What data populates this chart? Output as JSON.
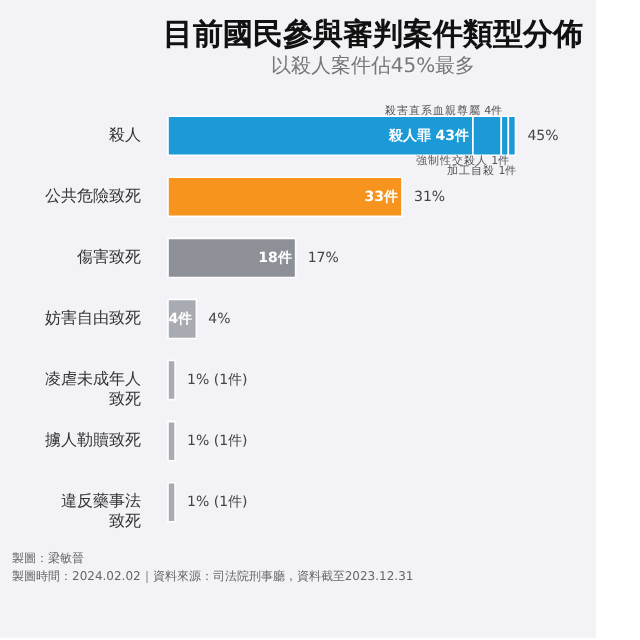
{
  "chart_data": {
    "type": "bar",
    "orientation": "horizontal",
    "stacked": true,
    "title": "目前國民參與審判案件類型分佈",
    "subtitle": "以殺人案件佔45%最多",
    "categories": [
      "殺人",
      "公共危險致死",
      "傷害致死",
      "妨害自由致死",
      "凌虐未成年人致死",
      "擄人勒贖致死",
      "違反藥事法致死"
    ],
    "series": [
      {
        "colors": [
          "#1b9ad7",
          "#f7941d",
          "#8e9098",
          "#a9abb2",
          "#a9abb2",
          "#a9abb2",
          "#a9abb2"
        ],
        "values": [
          43,
          33,
          18,
          4,
          1,
          1,
          1
        ],
        "value_labels": [
          "殺人罪 43件",
          "33件",
          "18件",
          "4件",
          null,
          null,
          null
        ]
      },
      {
        "color": "#1b9ad7",
        "values": [
          4,
          null,
          null,
          null,
          null,
          null,
          null
        ]
      },
      {
        "color": "#1b9ad7",
        "values": [
          1,
          null,
          null,
          null,
          null,
          null,
          null
        ]
      },
      {
        "color": "#1b9ad7",
        "values": [
          1,
          null,
          null,
          null,
          null,
          null,
          null
        ]
      }
    ],
    "annotations": [
      {
        "text": "殺害直系血親尊屬 4件",
        "x": 47,
        "y": "殺人"
      },
      {
        "text": "強制性交殺人 1件",
        "x": 48,
        "y": "殺人"
      },
      {
        "text": "加工自殺 1件",
        "x": 49,
        "y": "殺人"
      },
      {
        "text": "45%",
        "x": 49,
        "y": "殺人"
      },
      {
        "text": "31%",
        "x": 33,
        "y": "公共危險致死"
      },
      {
        "text": "17%",
        "x": 18,
        "y": "傷害致死"
      },
      {
        "text": "4%",
        "x": 4,
        "y": "妨害自由致死"
      },
      {
        "text": "1% (1件)",
        "x": 1,
        "y": "凌虐未成年人致死"
      },
      {
        "text": "1% (1件)",
        "x": 1,
        "y": "擄人勒贖致死"
      },
      {
        "text": "1% (1件)",
        "x": 1,
        "y": "違反藥事法致死"
      },
      "製圖：梁敏晉",
      "製圖時間：2024.02.02｜資料來源：司法院刑事廳，資料截至2023.12.31"
    ],
    "grid": false
  }
}
